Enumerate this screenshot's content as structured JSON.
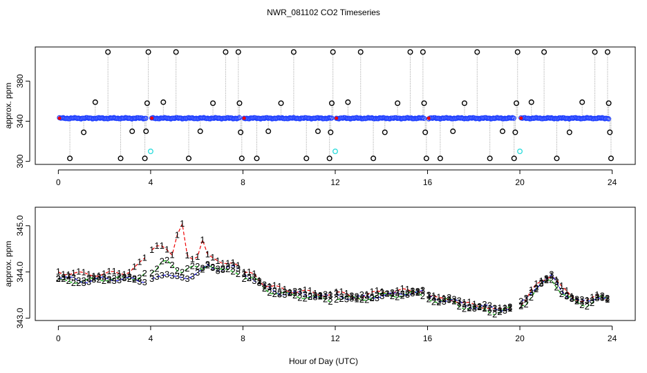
{
  "title": "NWR_081102  CO2 Timeseries",
  "xlabel": "Hour of Day (UTC)",
  "colors": {
    "cal_marker": "#000000",
    "sample_marker": "#1f3fff",
    "standard_marker": "#33dddd",
    "series1": "#ee0000",
    "series2": "#00aa00",
    "series3": "#1111ee",
    "connector": "#9a9a9a"
  },
  "chart_data": [
    {
      "type": "scatter",
      "name": "raw-timeseries",
      "ylabel": "approx. ppm",
      "xlim": [
        -1,
        25
      ],
      "ylim": [
        297,
        414
      ],
      "xticks": [
        0,
        4,
        8,
        12,
        16,
        20,
        24
      ],
      "xtick_labels": [
        "0",
        "4",
        "8",
        "12",
        "16",
        "20",
        "24"
      ],
      "yticks": [
        300,
        340,
        380
      ],
      "ytick_labels": [
        "300",
        "340",
        "380"
      ],
      "baseline_ppm": 343,
      "baseline_segments": [
        [
          0.05,
          3.8
        ],
        [
          4.05,
          7.85
        ],
        [
          8.05,
          11.85
        ],
        [
          12.05,
          15.85
        ],
        [
          16.05,
          19.75
        ],
        [
          20.05,
          23.85
        ]
      ],
      "calibration_points": [
        {
          "x": 0.5,
          "y": 303
        },
        {
          "x": 1.1,
          "y": 329
        },
        {
          "x": 1.6,
          "y": 359
        },
        {
          "x": 2.15,
          "y": 409
        },
        {
          "x": 2.7,
          "y": 303
        },
        {
          "x": 3.2,
          "y": 330
        },
        {
          "x": 3.75,
          "y": 303
        },
        {
          "x": 3.8,
          "y": 330
        },
        {
          "x": 3.85,
          "y": 358
        },
        {
          "x": 3.9,
          "y": 409
        },
        {
          "x": 4.55,
          "y": 359
        },
        {
          "x": 5.1,
          "y": 409
        },
        {
          "x": 5.65,
          "y": 303
        },
        {
          "x": 6.15,
          "y": 330
        },
        {
          "x": 6.7,
          "y": 358
        },
        {
          "x": 7.25,
          "y": 409
        },
        {
          "x": 7.8,
          "y": 409
        },
        {
          "x": 7.85,
          "y": 358
        },
        {
          "x": 7.9,
          "y": 329
        },
        {
          "x": 7.95,
          "y": 303
        },
        {
          "x": 8.6,
          "y": 303
        },
        {
          "x": 9.1,
          "y": 330
        },
        {
          "x": 9.65,
          "y": 358
        },
        {
          "x": 10.2,
          "y": 409
        },
        {
          "x": 10.75,
          "y": 303
        },
        {
          "x": 11.25,
          "y": 330
        },
        {
          "x": 11.75,
          "y": 303
        },
        {
          "x": 11.8,
          "y": 329
        },
        {
          "x": 11.85,
          "y": 358
        },
        {
          "x": 11.9,
          "y": 409
        },
        {
          "x": 12.55,
          "y": 359
        },
        {
          "x": 13.1,
          "y": 409
        },
        {
          "x": 13.65,
          "y": 303
        },
        {
          "x": 14.15,
          "y": 329
        },
        {
          "x": 14.7,
          "y": 358
        },
        {
          "x": 15.25,
          "y": 409
        },
        {
          "x": 15.8,
          "y": 409
        },
        {
          "x": 15.85,
          "y": 358
        },
        {
          "x": 15.9,
          "y": 329
        },
        {
          "x": 15.95,
          "y": 303
        },
        {
          "x": 16.55,
          "y": 303
        },
        {
          "x": 17.1,
          "y": 330
        },
        {
          "x": 17.6,
          "y": 358
        },
        {
          "x": 18.15,
          "y": 409
        },
        {
          "x": 18.7,
          "y": 303
        },
        {
          "x": 19.25,
          "y": 330
        },
        {
          "x": 19.75,
          "y": 303
        },
        {
          "x": 19.8,
          "y": 329
        },
        {
          "x": 19.85,
          "y": 358
        },
        {
          "x": 19.9,
          "y": 409
        },
        {
          "x": 20.5,
          "y": 359
        },
        {
          "x": 21.05,
          "y": 409
        },
        {
          "x": 21.6,
          "y": 303
        },
        {
          "x": 22.15,
          "y": 329
        },
        {
          "x": 22.7,
          "y": 359
        },
        {
          "x": 23.25,
          "y": 409
        },
        {
          "x": 23.8,
          "y": 409
        },
        {
          "x": 23.85,
          "y": 358
        },
        {
          "x": 23.9,
          "y": 329
        },
        {
          "x": 23.95,
          "y": 303
        }
      ],
      "standard_points": [
        {
          "x": 4.0,
          "y": 310
        },
        {
          "x": 12.0,
          "y": 310
        },
        {
          "x": 20.0,
          "y": 310
        }
      ]
    },
    {
      "type": "line",
      "name": "sample-lines",
      "ylabel": "approx. ppm",
      "xlim": [
        -1,
        25
      ],
      "ylim": [
        342.95,
        345.4
      ],
      "xticks": [
        0,
        4,
        8,
        12,
        16,
        20,
        24
      ],
      "xtick_labels": [
        "0",
        "4",
        "8",
        "12",
        "16",
        "20",
        "24"
      ],
      "yticks": [
        343.0,
        344.0,
        345.0
      ],
      "ytick_labels": [
        "343.0",
        "344.0",
        "345.0"
      ],
      "breaks": [
        [
          3.8,
          4.05
        ],
        [
          7.85,
          8.05
        ],
        [
          11.85,
          12.05
        ],
        [
          15.85,
          16.05
        ],
        [
          19.75,
          20.05
        ]
      ],
      "series": [
        {
          "name": "1",
          "label": "1",
          "offset": 0.05,
          "x": [
            0,
            1,
            2,
            3,
            3.5,
            4,
            4.3,
            4.6,
            5,
            5.3,
            5.6,
            6,
            6.2,
            6.5,
            7,
            7.5,
            7.8,
            8,
            8.5,
            9,
            9.5,
            10,
            11,
            11.8,
            12,
            12.5,
            13,
            13.5,
            14,
            14.5,
            15,
            15.5,
            15.8,
            16,
            16.5,
            17,
            17.5,
            18,
            18.5,
            19,
            19.5,
            19.8,
            20,
            20.3,
            20.6,
            21,
            21.4,
            21.8,
            22.2,
            22.6,
            23,
            23.4,
            23.8
          ],
          "y": [
            344.0,
            343.95,
            343.95,
            344.0,
            344.15,
            344.4,
            344.55,
            344.6,
            344.35,
            345.2,
            344.3,
            344.3,
            344.8,
            344.3,
            344.2,
            344.25,
            344.1,
            343.95,
            343.95,
            343.7,
            343.65,
            343.6,
            343.55,
            343.5,
            343.55,
            343.5,
            343.45,
            343.5,
            343.6,
            343.55,
            343.6,
            343.6,
            343.6,
            343.5,
            343.4,
            343.45,
            343.3,
            343.3,
            343.25,
            343.15,
            343.25,
            343.25,
            343.3,
            343.4,
            343.65,
            343.85,
            343.95,
            343.65,
            343.5,
            343.4,
            343.35,
            343.5,
            343.45
          ]
        },
        {
          "name": "2",
          "label": "2",
          "offset": 0.0,
          "x": [
            0,
            1,
            2,
            3,
            3.5,
            4,
            4.3,
            4.6,
            5,
            5.3,
            5.6,
            6,
            6.2,
            6.5,
            7,
            7.5,
            7.8,
            8,
            8.5,
            9,
            9.5,
            10,
            11,
            11.8,
            12,
            12.5,
            13,
            13.5,
            14,
            14.5,
            15,
            15.5,
            15.8,
            16,
            16.5,
            17,
            17.5,
            18,
            18.5,
            19,
            19.5,
            19.8,
            20,
            20.3,
            20.6,
            21,
            21.4,
            21.8,
            22.2,
            22.6,
            23,
            23.4,
            23.8
          ],
          "y": [
            343.8,
            343.8,
            343.85,
            343.85,
            343.9,
            344.0,
            344.05,
            344.25,
            344.15,
            344.0,
            344.05,
            344.1,
            344.05,
            344.2,
            344.0,
            344.05,
            344.0,
            343.9,
            343.85,
            343.6,
            343.55,
            343.5,
            343.45,
            343.4,
            343.45,
            343.45,
            343.4,
            343.45,
            343.5,
            343.5,
            343.5,
            343.55,
            343.5,
            343.45,
            343.35,
            343.4,
            343.25,
            343.2,
            343.2,
            343.1,
            343.2,
            343.2,
            343.25,
            343.35,
            343.55,
            343.75,
            343.85,
            343.55,
            343.4,
            343.3,
            343.3,
            343.45,
            343.4
          ]
        },
        {
          "name": "3",
          "label": "3",
          "offset": -0.07,
          "x": [
            0,
            1,
            2,
            3,
            3.5,
            4,
            4.3,
            4.6,
            5,
            5.3,
            5.6,
            6,
            6.2,
            6.5,
            7,
            7.5,
            7.8,
            8,
            8.5,
            9,
            9.5,
            10,
            11,
            11.8,
            12,
            12.5,
            13,
            13.5,
            14,
            14.5,
            15,
            15.5,
            15.8,
            16,
            16.5,
            17,
            17.5,
            18,
            18.5,
            19,
            19.5,
            19.8,
            20,
            20.3,
            20.6,
            21,
            21.4,
            21.8,
            22.2,
            22.6,
            23,
            23.4,
            23.8
          ],
          "y": [
            343.9,
            343.8,
            343.85,
            343.85,
            343.8,
            343.85,
            343.95,
            343.95,
            343.85,
            343.9,
            343.9,
            343.95,
            344.0,
            344.15,
            344.05,
            344.1,
            344.05,
            343.95,
            343.85,
            343.65,
            343.55,
            343.55,
            343.5,
            343.45,
            343.5,
            343.45,
            343.45,
            343.45,
            343.5,
            343.5,
            343.55,
            343.55,
            343.55,
            343.45,
            343.4,
            343.4,
            343.3,
            343.25,
            343.25,
            343.2,
            343.2,
            343.25,
            343.3,
            343.4,
            343.65,
            343.8,
            343.9,
            343.6,
            343.45,
            343.35,
            343.35,
            343.5,
            343.4
          ]
        }
      ]
    }
  ]
}
